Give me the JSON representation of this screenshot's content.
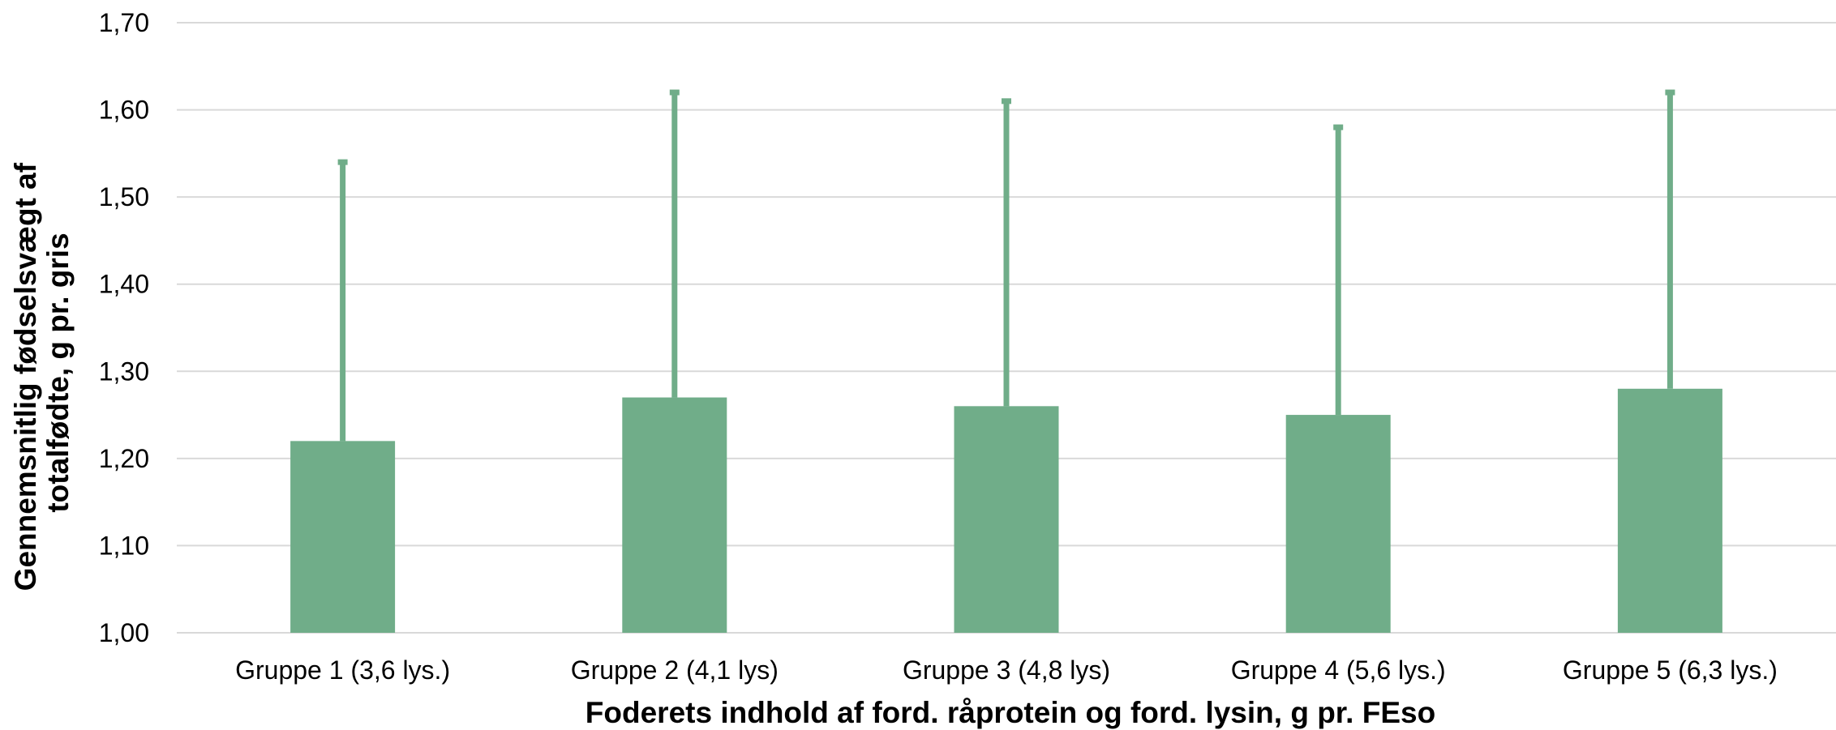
{
  "chart_data": {
    "type": "bar",
    "title": "",
    "xlabel": "Foderets indhold af ford. råprotein og ford. lysin, g pr. FEso",
    "ylabel_lines": [
      "Gennemsnitlig fødselsvægt af",
      "totalfødte, g pr. gris"
    ],
    "categories": [
      "Gruppe 1 (3,6 lys.)",
      "Gruppe 2 (4,1 lys)",
      "Gruppe 3 (4,8 lys)",
      "Gruppe 4 (5,6 lys.)",
      "Gruppe 5 (6,3 lys.)"
    ],
    "values": [
      1.22,
      1.27,
      1.26,
      1.25,
      1.28
    ],
    "error_upper": [
      1.54,
      1.62,
      1.61,
      1.58,
      1.62
    ],
    "ylim": [
      1.0,
      1.7
    ],
    "yticks": [
      "1,00",
      "1,10",
      "1,20",
      "1,30",
      "1,40",
      "1,50",
      "1,60",
      "1,70"
    ],
    "grid": true,
    "legend": "none",
    "bar_color": "#70ad89",
    "grid_color": "#d9d9d9"
  }
}
